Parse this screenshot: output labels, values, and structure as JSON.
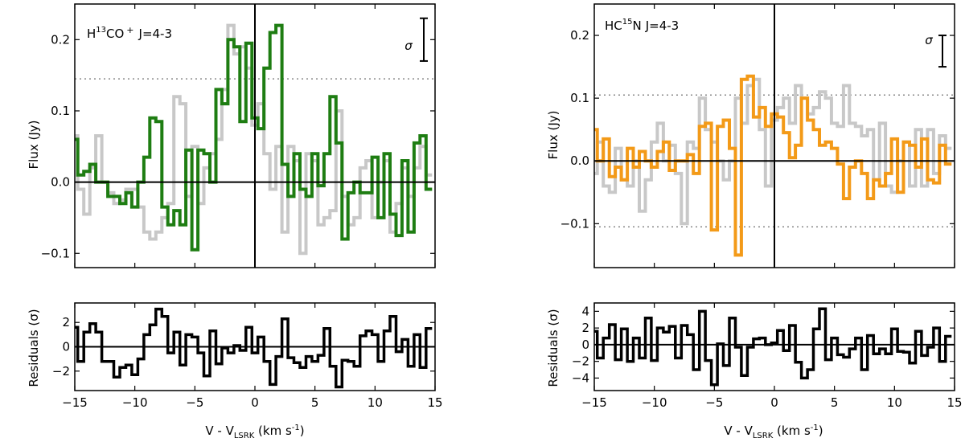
{
  "chart_data": [
    {
      "type": "line",
      "role": "main",
      "panel": "left",
      "title": "",
      "annotation": {
        "species": "H",
        "iso": "13",
        "molecule": "CO",
        "charge": "+",
        "transition": "J=4-3"
      },
      "sigma_label": "σ",
      "sigma_value": 0.03,
      "ylabel": "Flux (Jy)",
      "xlabel": "",
      "xlim": [
        -15,
        15
      ],
      "ylim": [
        -0.12,
        0.25
      ],
      "yticks": [
        -0.1,
        0.0,
        0.1,
        0.2
      ],
      "ytick_labels": [
        "−0.1",
        "0.0",
        "0.1",
        "0.2"
      ],
      "threshold_line": 0.145,
      "color": "#1e7d12",
      "background_color": "#c8c8c8",
      "x": [
        -15,
        -14.5,
        -14,
        -13.5,
        -13,
        -12.5,
        -12,
        -11.5,
        -11,
        -10.5,
        -10,
        -9.5,
        -9,
        -8.5,
        -8,
        -7.5,
        -7,
        -6.5,
        -6,
        -5.5,
        -5,
        -4.5,
        -4,
        -3.5,
        -3,
        -2.5,
        -2,
        -1.5,
        -1,
        -0.5,
        0,
        0.5,
        1,
        1.5,
        2,
        2.5,
        3,
        3.5,
        4,
        4.5,
        5,
        5.5,
        6,
        6.5,
        7,
        7.5,
        8,
        8.5,
        9,
        9.5,
        10,
        10.5,
        11,
        11.5,
        12,
        12.5,
        13,
        13.5,
        14,
        14.5
      ],
      "series": [
        {
          "name": "spectrum",
          "values": [
            0.06,
            0.01,
            0.015,
            0.025,
            0.0,
            0.0,
            -0.02,
            -0.02,
            -0.03,
            -0.015,
            -0.035,
            0.0,
            0.035,
            0.09,
            0.085,
            -0.035,
            -0.06,
            -0.04,
            -0.06,
            0.045,
            -0.095,
            0.045,
            0.04,
            0.0,
            0.13,
            0.11,
            0.2,
            0.19,
            0.085,
            0.195,
            0.09,
            0.075,
            0.16,
            0.21,
            0.22,
            0.025,
            -0.02,
            0.04,
            -0.01,
            -0.02,
            0.04,
            -0.005,
            0.04,
            0.12,
            0.055,
            -0.08,
            -0.015,
            0.0,
            -0.015,
            -0.015,
            0.035,
            -0.05,
            0.04,
            -0.045,
            -0.075,
            0.03,
            -0.07,
            0.055,
            0.065,
            -0.01
          ]
        },
        {
          "name": "comparison",
          "values": [
            0.065,
            -0.01,
            -0.045,
            0.02,
            0.065,
            0.0,
            -0.015,
            -0.03,
            -0.025,
            -0.01,
            -0.01,
            -0.035,
            -0.07,
            -0.08,
            -0.07,
            -0.05,
            -0.03,
            0.12,
            0.11,
            -0.02,
            0.05,
            -0.03,
            0.02,
            0.04,
            0.06,
            0.13,
            0.22,
            0.18,
            0.19,
            0.16,
            0.08,
            0.11,
            0.04,
            -0.01,
            0.05,
            -0.07,
            0.05,
            0.03,
            -0.1,
            0.04,
            0.03,
            -0.06,
            -0.05,
            -0.04,
            0.1,
            -0.02,
            -0.06,
            -0.05,
            0.02,
            0.03,
            -0.05,
            0.0,
            0.03,
            -0.07,
            -0.03,
            0.02,
            -0.02,
            0.02,
            0.05,
            0.01
          ]
        }
      ]
    },
    {
      "type": "line",
      "role": "residuals",
      "panel": "left",
      "ylabel": "Residuals (σ)",
      "xlabel": "V - V",
      "xlabel_sub": "LSRK",
      "xlabel_unit": " (km s",
      "xlabel_exp": "-1",
      "xlabel_end": ")",
      "xlim": [
        -15,
        15
      ],
      "ylim": [
        -3.6,
        3.6
      ],
      "yticks": [
        -2,
        0,
        2
      ],
      "ytick_labels": [
        "−2",
        "0",
        "2"
      ],
      "xticks": [
        -15,
        -10,
        -5,
        0,
        5,
        10,
        15
      ],
      "xtick_labels": [
        "−15",
        "−10",
        "−5",
        "0",
        "5",
        "10",
        "15"
      ],
      "x": [
        -15,
        -14.5,
        -14,
        -13.5,
        -13,
        -12.5,
        -12,
        -11.5,
        -11,
        -10.5,
        -10,
        -9.5,
        -9,
        -8.5,
        -8,
        -7.5,
        -7,
        -6.5,
        -6,
        -5.5,
        -5,
        -4.5,
        -4,
        -3.5,
        -3,
        -2.5,
        -2,
        -1.5,
        -1,
        -0.5,
        0,
        0.5,
        1,
        1.5,
        2,
        2.5,
        3,
        3.5,
        4,
        4.5,
        5,
        5.5,
        6,
        6.5,
        7,
        7.5,
        8,
        8.5,
        9,
        9.5,
        10,
        10.5,
        11,
        11.5,
        12,
        12.5,
        13,
        13.5,
        14,
        14.5
      ],
      "series": [
        {
          "name": "residuals",
          "values": [
            1.6,
            -1.2,
            1.2,
            1.9,
            1.2,
            -1.2,
            -1.2,
            -2.5,
            -1.7,
            -1.5,
            -2.3,
            -1.0,
            1.0,
            1.8,
            3.1,
            2.5,
            -0.5,
            1.2,
            -1.5,
            1.0,
            0.8,
            -0.5,
            -2.4,
            1.3,
            -1.4,
            -0.1,
            -0.5,
            0.1,
            -0.3,
            1.6,
            -0.5,
            0.8,
            -1.2,
            -3.1,
            -0.8,
            2.3,
            -0.9,
            -1.3,
            -1.7,
            -0.8,
            -1.2,
            -0.7,
            1.5,
            -1.6,
            -3.3,
            -1.1,
            -1.2,
            -1.6,
            0.9,
            1.3,
            1.0,
            -1.2,
            1.3,
            2.5,
            -0.4,
            0.6,
            -1.6,
            1.0,
            -1.7,
            1.5
          ]
        }
      ]
    },
    {
      "type": "line",
      "role": "main",
      "panel": "right",
      "title": "",
      "annotation": {
        "species": "HC",
        "iso": "15",
        "molecule": "N",
        "charge": "",
        "transition": "J=4-3"
      },
      "sigma_label": "σ",
      "sigma_value": 0.025,
      "ylabel": "Flux (Jy)",
      "xlabel": "",
      "xlim": [
        -15,
        15
      ],
      "ylim": [
        -0.17,
        0.25
      ],
      "yticks": [
        -0.1,
        0.0,
        0.1,
        0.2
      ],
      "ytick_labels": [
        "−0.1",
        "0.0",
        "0.1",
        "0.2"
      ],
      "threshold_line": 0.105,
      "threshold_line_lower": -0.105,
      "color": "#f39a18",
      "background_color": "#c8c8c8",
      "x": [
        -15,
        -14.5,
        -14,
        -13.5,
        -13,
        -12.5,
        -12,
        -11.5,
        -11,
        -10.5,
        -10,
        -9.5,
        -9,
        -8.5,
        -8,
        -7.5,
        -7,
        -6.5,
        -6,
        -5.5,
        -5,
        -4.5,
        -4,
        -3.5,
        -3,
        -2.5,
        -2,
        -1.5,
        -1,
        -0.5,
        0,
        0.5,
        1,
        1.5,
        2,
        2.5,
        3,
        3.5,
        4,
        4.5,
        5,
        5.5,
        6,
        6.5,
        7,
        7.5,
        8,
        8.5,
        9,
        9.5,
        10,
        10.5,
        11,
        11.5,
        12,
        12.5,
        13,
        13.5,
        14,
        14.5
      ],
      "series": [
        {
          "name": "spectrum",
          "values": [
            0.05,
            0.0,
            0.035,
            -0.025,
            -0.01,
            -0.03,
            0.02,
            -0.01,
            0.015,
            0.0,
            -0.01,
            0.015,
            0.03,
            -0.015,
            0.0,
            0.0,
            0.01,
            -0.02,
            0.055,
            0.06,
            -0.11,
            0.055,
            0.065,
            0.02,
            -0.15,
            0.13,
            0.135,
            0.07,
            0.085,
            0.055,
            0.075,
            0.07,
            0.045,
            0.005,
            0.025,
            0.1,
            0.065,
            0.05,
            0.025,
            0.03,
            0.02,
            -0.005,
            -0.06,
            -0.01,
            0.0,
            -0.02,
            -0.06,
            -0.03,
            -0.04,
            -0.02,
            0.035,
            -0.05,
            0.03,
            0.025,
            -0.01,
            0.035,
            -0.03,
            -0.035,
            0.025,
            -0.005
          ]
        },
        {
          "name": "comparison",
          "values": [
            -0.02,
            0.03,
            -0.04,
            -0.05,
            0.02,
            -0.03,
            -0.04,
            0.0,
            -0.08,
            -0.03,
            0.03,
            0.06,
            0.0,
            0.025,
            -0.02,
            -0.1,
            0.03,
            0.02,
            0.1,
            0.05,
            0.03,
            0.0,
            -0.03,
            0.0,
            0.1,
            0.06,
            0.12,
            0.13,
            0.05,
            -0.04,
            0.065,
            0.085,
            0.1,
            0.06,
            0.12,
            0.1,
            0.075,
            0.085,
            0.11,
            0.1,
            0.06,
            0.055,
            0.12,
            0.06,
            0.055,
            0.04,
            0.05,
            -0.03,
            0.06,
            -0.04,
            -0.05,
            0.0,
            0.03,
            -0.04,
            0.05,
            -0.04,
            0.05,
            -0.02,
            0.04,
            0.02
          ]
        }
      ]
    },
    {
      "type": "line",
      "role": "residuals",
      "panel": "right",
      "ylabel": "Residuals (σ)",
      "xlabel": "V - V",
      "xlabel_sub": "LSRK",
      "xlabel_unit": " (km s",
      "xlabel_exp": "-1",
      "xlabel_end": ")",
      "xlim": [
        -15,
        15
      ],
      "ylim": [
        -5.5,
        5
      ],
      "yticks": [
        -4,
        -2,
        0,
        2,
        4
      ],
      "ytick_labels": [
        "−4",
        "−2",
        "0",
        "2",
        "4"
      ],
      "xticks": [
        -15,
        -10,
        -5,
        0,
        5,
        10,
        15
      ],
      "xtick_labels": [
        "−15",
        "−10",
        "−5",
        "0",
        "5",
        "10",
        "15"
      ],
      "x": [
        -15,
        -14.5,
        -14,
        -13.5,
        -13,
        -12.5,
        -12,
        -11.5,
        -11,
        -10.5,
        -10,
        -9.5,
        -9,
        -8.5,
        -8,
        -7.5,
        -7,
        -6.5,
        -6,
        -5.5,
        -5,
        -4.5,
        -4,
        -3.5,
        -3,
        -2.5,
        -2,
        -1.5,
        -1,
        -0.5,
        0,
        0.5,
        1,
        1.5,
        2,
        2.5,
        3,
        3.5,
        4,
        4.5,
        5,
        5.5,
        6,
        6.5,
        7,
        7.5,
        8,
        8.5,
        9,
        9.5,
        10,
        10.5,
        11,
        11.5,
        12,
        12.5,
        13,
        13.5,
        14,
        14.5
      ],
      "series": [
        {
          "name": "residuals",
          "values": [
            1.6,
            -1.6,
            0.8,
            2.4,
            -1.8,
            1.9,
            -2.0,
            0.8,
            -1.6,
            3.2,
            -1.9,
            2.0,
            1.5,
            2.2,
            -1.6,
            2.3,
            1.2,
            -3.0,
            4.0,
            -1.9,
            -4.8,
            0.1,
            -2.5,
            3.2,
            -0.3,
            -3.7,
            -0.3,
            0.7,
            0.8,
            0.0,
            0.2,
            1.7,
            -0.7,
            2.3,
            -2.1,
            -4.0,
            -3.0,
            1.9,
            4.3,
            -1.8,
            0.8,
            -1.2,
            -1.5,
            -0.5,
            0.8,
            -3.0,
            1.1,
            -1.1,
            -0.5,
            -1.1,
            1.9,
            -0.8,
            -0.9,
            -2.2,
            1.6,
            -1.3,
            -0.3,
            2.0,
            -2.0,
            1.0
          ]
        }
      ]
    }
  ]
}
